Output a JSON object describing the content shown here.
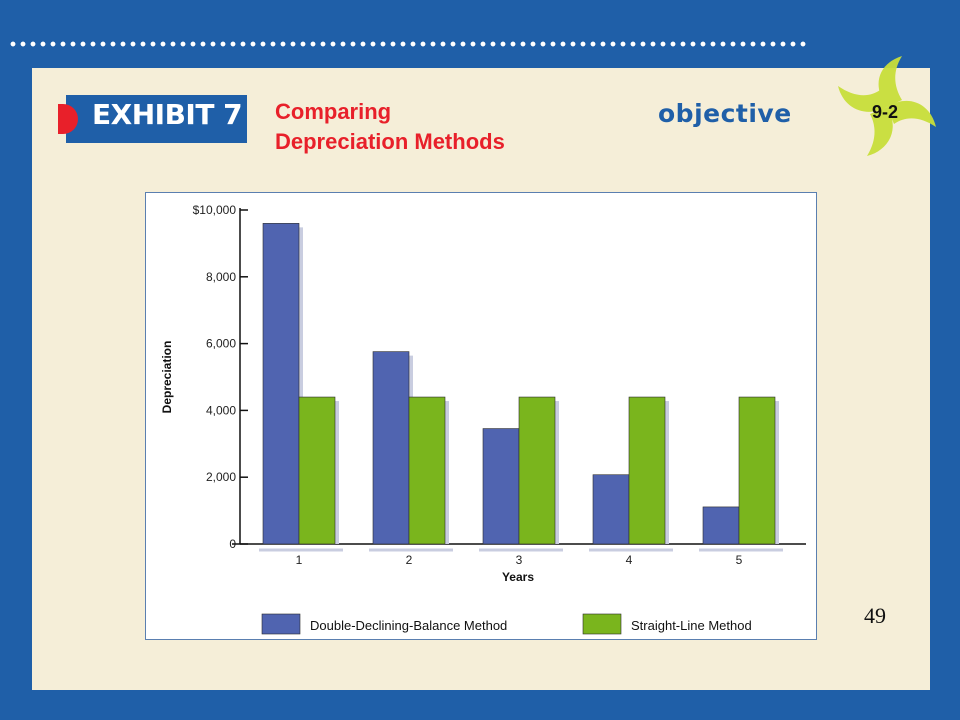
{
  "slide": {
    "exhibit_label": "EXHIBIT 7",
    "title_line1": "Comparing",
    "title_line2": "Depreciation Methods",
    "objective_label": "objective",
    "objective_number": "9-2",
    "page_number": "49"
  },
  "colors": {
    "background": "#1f5fa8",
    "panel": "#f5eed8",
    "title": "#e8202a",
    "series_ddb": "#5064b0",
    "series_sl": "#7ab51d",
    "swirl": "#c8df3a"
  },
  "chart_data": {
    "type": "bar",
    "title": "",
    "xlabel": "Years",
    "ylabel": "Depreciation",
    "categories": [
      "1",
      "2",
      "3",
      "4",
      "5"
    ],
    "ylim": [
      0,
      10000
    ],
    "yticks": [
      0,
      2000,
      4000,
      6000,
      8000,
      10000
    ],
    "ytick_labels": [
      "0",
      "2,000",
      "4,000",
      "6,000",
      "8,000",
      "$10,000"
    ],
    "series": [
      {
        "name": "Double-Declining-Balance Method",
        "values": [
          9600,
          5760,
          3456,
          2074,
          1110
        ],
        "color": "#5064b0"
      },
      {
        "name": "Straight-Line Method",
        "values": [
          4400,
          4400,
          4400,
          4400,
          4400
        ],
        "color": "#7ab51d"
      }
    ],
    "legend_position": "bottom",
    "grid": false
  }
}
